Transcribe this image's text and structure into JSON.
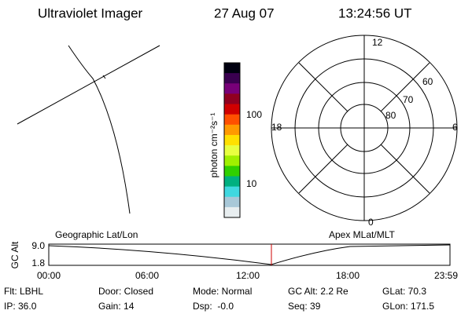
{
  "header": {
    "title": "Ultraviolet Imager",
    "date": "27 Aug 07",
    "time": "13:24:56 UT"
  },
  "colorbar": {
    "label": "photon cm⁻²s⁻¹",
    "ticks": [
      "100",
      "10"
    ]
  },
  "polar": {
    "labels": [
      "12",
      "0",
      "18",
      "6",
      "60",
      "70",
      "80"
    ]
  },
  "altitude_plot": {
    "left_title": "Geographic Lat/Lon",
    "right_title": "Apex MLat/MLT",
    "y_label": "GC Alt",
    "y_ticks": [
      "9.0",
      "1.8"
    ],
    "x_ticks": [
      "00:00",
      "06:00",
      "12:00",
      "18:00",
      "23:59"
    ]
  },
  "status": {
    "rows": [
      [
        "Flt: LBHL",
        "Door: Closed",
        "Mode: Normal",
        "GC Alt: 2.2 Re",
        "GLat: 70.3"
      ],
      [
        "IP: 36.0",
        "Gain: 14",
        "Dsp:  -0.0",
        "Seq: 39",
        "GLon: 171.5"
      ]
    ]
  }
}
